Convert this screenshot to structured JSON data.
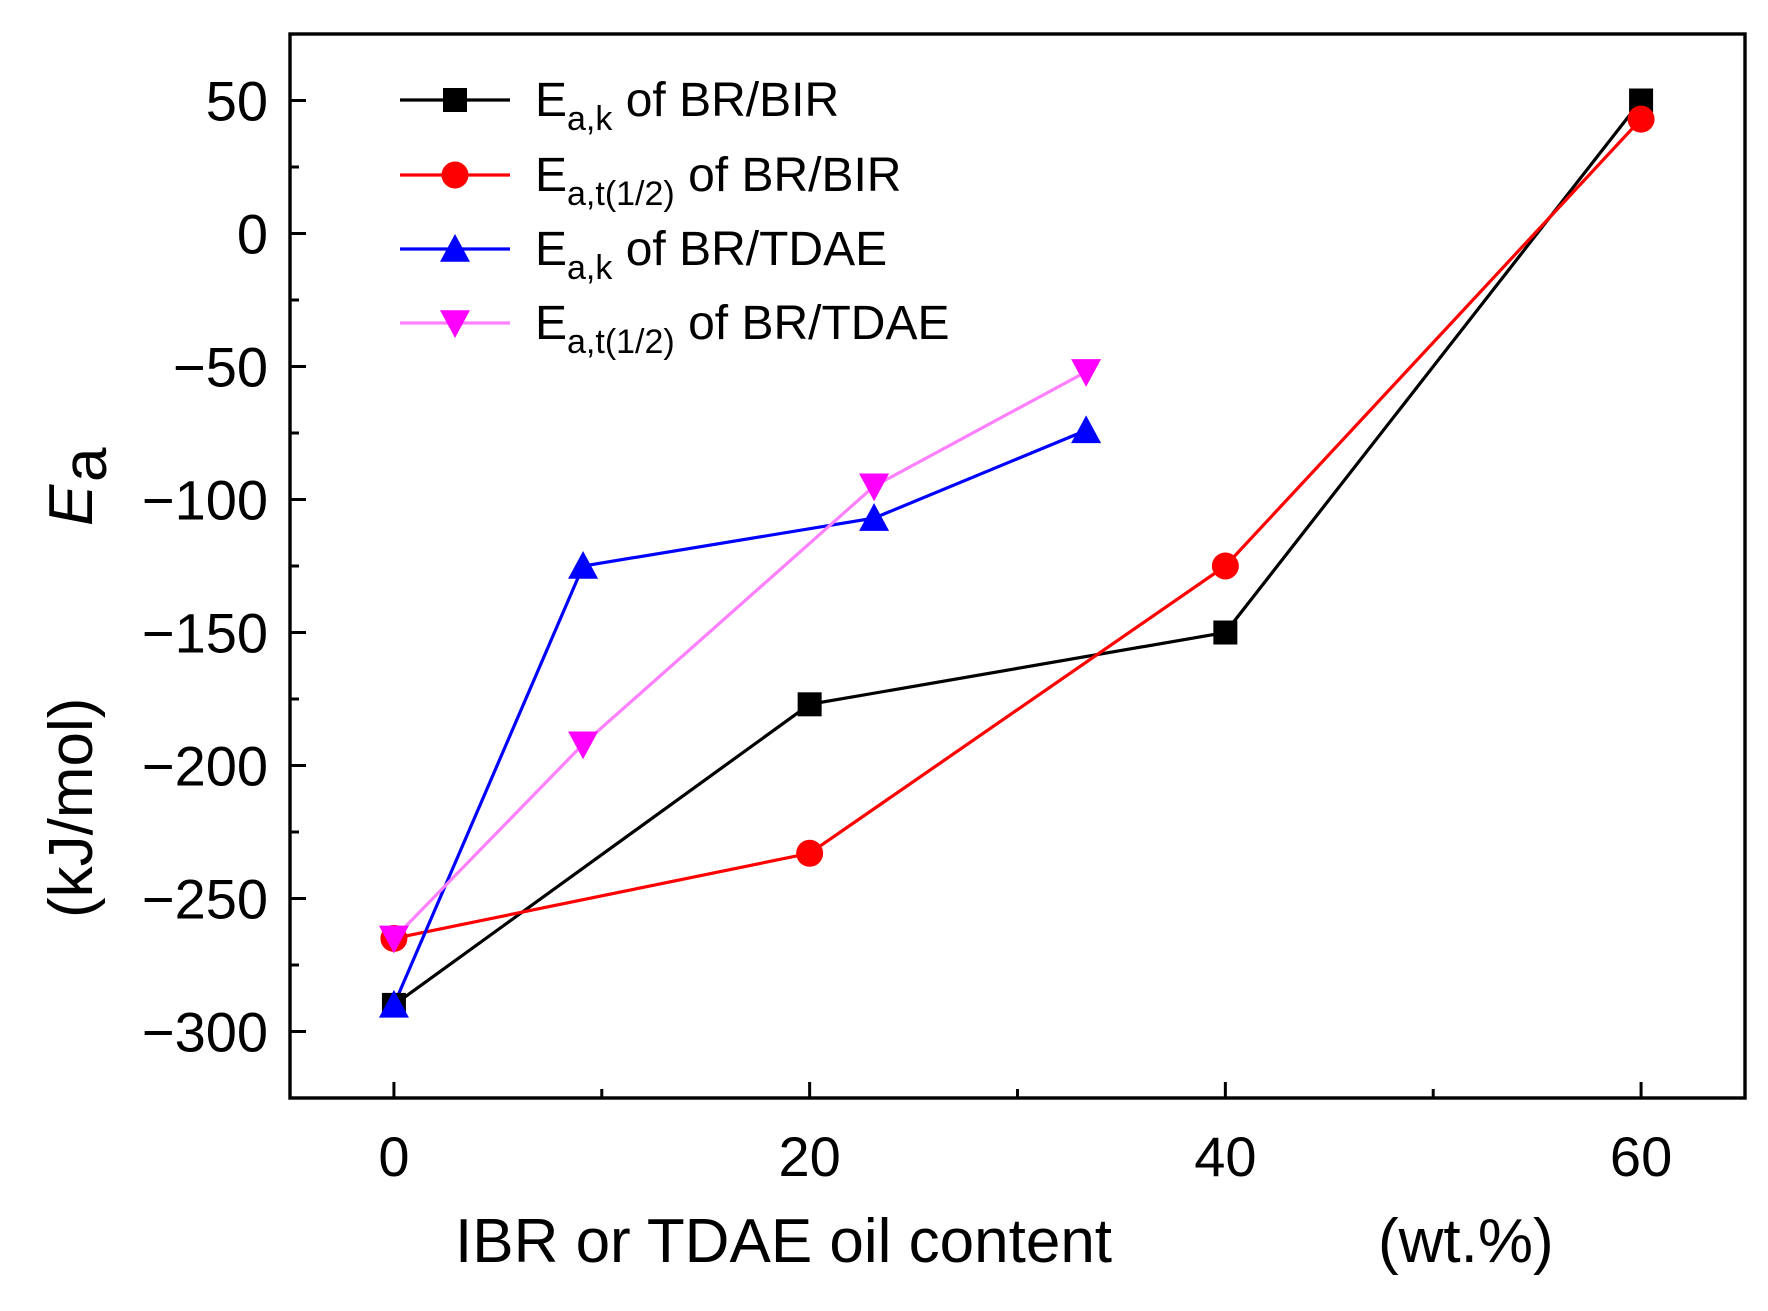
{
  "chart_data": {
    "type": "line",
    "title": "",
    "xlabel": "IBR or TDAE oil content",
    "xlabel_unit": "(wt.%)",
    "ylabel_symbol": "E",
    "ylabel_subscript": "a",
    "ylabel_unit": "(kJ/mol)",
    "xlim": [
      -5,
      65
    ],
    "ylim": [
      -325,
      75
    ],
    "x_ticks": [
      0,
      20,
      40,
      60
    ],
    "x_minor_ticks": [
      10,
      30,
      50
    ],
    "y_ticks": [
      50,
      0,
      -50,
      -100,
      -150,
      -200,
      -250,
      -300
    ],
    "y_tick_labels": [
      "50",
      "0",
      "−50",
      "−100",
      "−150",
      "−200",
      "−250",
      "−300"
    ],
    "y_minor_ticks": [
      25,
      -25,
      -75,
      -125,
      -175,
      -225,
      -275
    ],
    "grid": false,
    "legend_position": "top-left",
    "series": [
      {
        "name": "Ea,k of BR/BIR",
        "label_main": "E",
        "label_sub": "a,k",
        "label_rest": " of BR/BIR",
        "color": "#000000",
        "marker": "square",
        "x": [
          0,
          20,
          40,
          60
        ],
        "y": [
          -290,
          -177,
          -150,
          50
        ]
      },
      {
        "name": "Ea,t(1/2) of BR/BIR",
        "label_main": "E",
        "label_sub": "a,t(1/2)",
        "label_rest": " of BR/BIR",
        "color": "#ff0000",
        "marker": "circle",
        "x": [
          0,
          20,
          40,
          60
        ],
        "y": [
          -265,
          -233,
          -125,
          43
        ]
      },
      {
        "name": "Ea,k of BR/TDAE",
        "label_main": "E",
        "label_sub": "a,k",
        "label_rest": " of BR/TDAE",
        "color": "#0000ff",
        "marker": "triangle-up",
        "x": [
          0,
          9.1,
          23.1,
          33.3
        ],
        "y": [
          -290,
          -125,
          -107,
          -74
        ]
      },
      {
        "name": "Ea,t(1/2) of BR/TDAE",
        "label_main": "E",
        "label_sub": "a,t(1/2)",
        "label_rest": " of BR/TDAE",
        "color": "#ff00ff",
        "line_color": "#ff80ff",
        "marker": "triangle-down",
        "x": [
          0,
          9.1,
          23.1,
          33.3
        ],
        "y": [
          -265,
          -192,
          -95,
          -52
        ]
      }
    ]
  }
}
